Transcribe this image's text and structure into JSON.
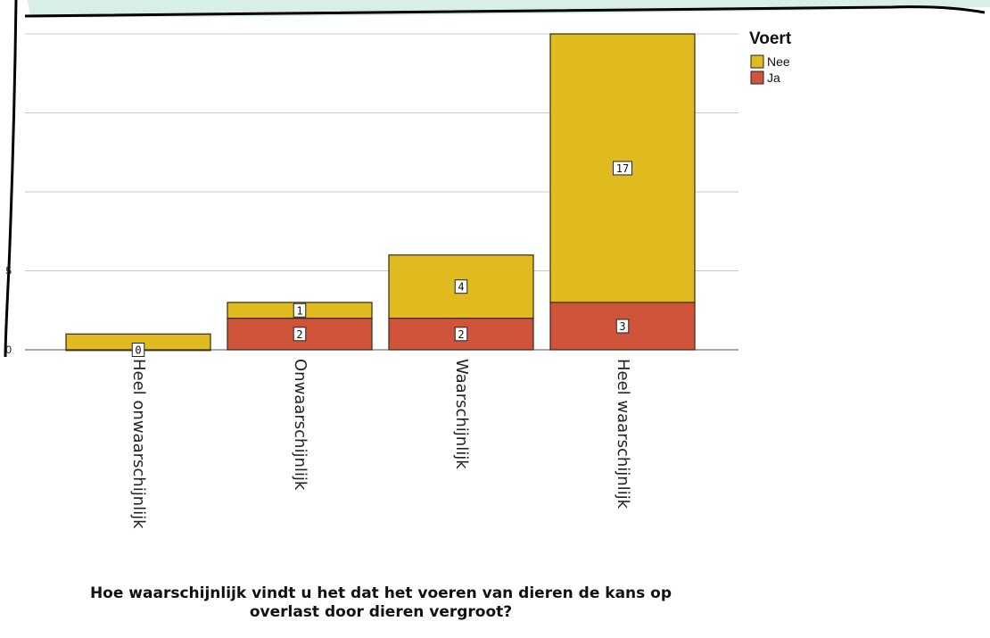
{
  "chart_data": {
    "type": "bar",
    "stacked": true,
    "categories": [
      "Heel onwaarschijnlijk",
      "Onwaarschijnlijk",
      "Waarschijnlijk",
      "Heel waarschijnlijk"
    ],
    "series": [
      {
        "name": "Ja",
        "color": "#d0543a",
        "values": [
          0,
          2,
          2,
          3
        ]
      },
      {
        "name": "Nee",
        "color": "#e0bb1f",
        "values": [
          1,
          1,
          4,
          17
        ]
      }
    ],
    "data_labels": {
      "Ja": [
        "0",
        "2",
        "2",
        "3"
      ],
      "Nee": [
        "",
        "1",
        "4",
        "17"
      ]
    },
    "yticks": [
      0,
      5
    ],
    "ylim": [
      0,
      20
    ],
    "grid": true,
    "legend": {
      "title": "Voert",
      "order": [
        "Nee",
        "Ja"
      ],
      "placement": "top-right"
    },
    "xlabel_lines": [
      "Hoe waarschijnlijk vindt u het dat het voeren van dieren de kans op",
      "overlast door dieren vergroot?"
    ],
    "frame_color": "#d8efe9"
  }
}
